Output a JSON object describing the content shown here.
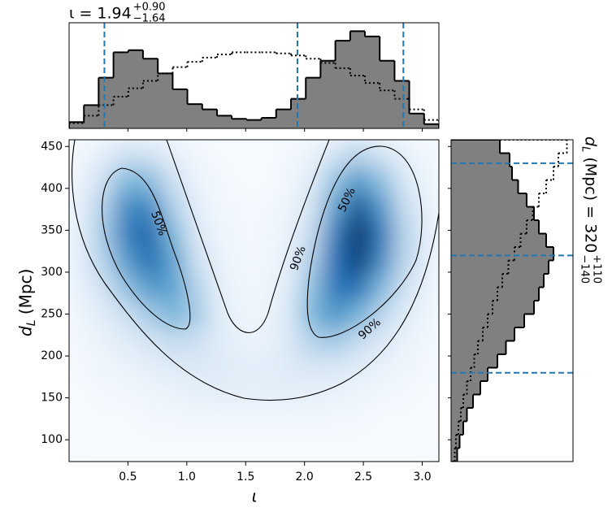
{
  "chart_data": [
    {
      "type": "heatmap",
      "xlabel": "ι",
      "ylabel": {
        "main": "d",
        "sub": "L",
        "rest": " (Mpc)"
      },
      "xlim": [
        0,
        3.1416
      ],
      "ylim": [
        74,
        458
      ],
      "xticks": [
        0.5,
        {
          "value": 1,
          "label": "1.0"
        },
        1.5,
        {
          "value": 2,
          "label": "2.0"
        },
        2.5,
        {
          "value": 3,
          "label": "3.0"
        }
      ],
      "yticks": [
        100,
        150,
        200,
        250,
        300,
        350,
        400,
        450
      ],
      "cmap": [
        "#f7fbff",
        "#c6dbef",
        "#6baed6",
        "#2171b5",
        "#08306b"
      ],
      "xbins": [
        0,
        0.196,
        0.393,
        0.589,
        0.785,
        0.982,
        1.178,
        1.374,
        1.571,
        1.767,
        1.963,
        2.16,
        2.356,
        2.553,
        2.749,
        2.945,
        3.142
      ],
      "ybins": [
        74,
        106,
        138,
        170,
        202,
        234,
        266,
        298,
        330,
        362,
        394,
        426,
        458
      ],
      "density": [
        [
          0.01,
          0.01,
          0.01,
          0.01,
          0.01,
          0.01,
          0.01,
          0.01,
          0.01,
          0.01,
          0.01,
          0.01,
          0.01,
          0.01,
          0.01,
          0.01
        ],
        [
          0.01,
          0.01,
          0.01,
          0.02,
          0.02,
          0.03,
          0.03,
          0.03,
          0.03,
          0.03,
          0.03,
          0.02,
          0.02,
          0.01,
          0.01,
          0.01
        ],
        [
          0.01,
          0.02,
          0.03,
          0.04,
          0.06,
          0.08,
          0.09,
          0.09,
          0.09,
          0.09,
          0.08,
          0.07,
          0.05,
          0.03,
          0.02,
          0.01
        ],
        [
          0.02,
          0.04,
          0.06,
          0.09,
          0.12,
          0.14,
          0.13,
          0.1,
          0.1,
          0.13,
          0.16,
          0.15,
          0.11,
          0.07,
          0.04,
          0.02
        ],
        [
          0.03,
          0.07,
          0.12,
          0.18,
          0.25,
          0.22,
          0.12,
          0.07,
          0.07,
          0.14,
          0.3,
          0.35,
          0.25,
          0.14,
          0.07,
          0.03
        ],
        [
          0.05,
          0.12,
          0.22,
          0.35,
          0.45,
          0.35,
          0.12,
          0.05,
          0.05,
          0.15,
          0.45,
          0.6,
          0.48,
          0.28,
          0.12,
          0.05
        ],
        [
          0.08,
          0.2,
          0.4,
          0.58,
          0.55,
          0.3,
          0.09,
          0.04,
          0.04,
          0.12,
          0.4,
          0.72,
          0.75,
          0.45,
          0.2,
          0.07
        ],
        [
          0.1,
          0.3,
          0.58,
          0.75,
          0.55,
          0.22,
          0.07,
          0.03,
          0.03,
          0.09,
          0.32,
          0.75,
          0.95,
          0.65,
          0.28,
          0.09
        ],
        [
          0.1,
          0.35,
          0.7,
          0.78,
          0.45,
          0.15,
          0.05,
          0.02,
          0.02,
          0.07,
          0.25,
          0.7,
          1.0,
          0.72,
          0.3,
          0.1
        ],
        [
          0.09,
          0.32,
          0.65,
          0.65,
          0.32,
          0.1,
          0.03,
          0.02,
          0.02,
          0.05,
          0.18,
          0.55,
          0.85,
          0.6,
          0.25,
          0.08
        ],
        [
          0.06,
          0.22,
          0.45,
          0.42,
          0.2,
          0.06,
          0.02,
          0.01,
          0.01,
          0.03,
          0.12,
          0.38,
          0.58,
          0.4,
          0.16,
          0.05
        ],
        [
          0.03,
          0.1,
          0.2,
          0.18,
          0.09,
          0.03,
          0.01,
          0.01,
          0.01,
          0.02,
          0.06,
          0.18,
          0.28,
          0.18,
          0.08,
          0.03
        ]
      ],
      "contour_labels": [
        "50%",
        "50%",
        "90%",
        "90%"
      ]
    },
    {
      "type": "histogram",
      "orientation": "vertical",
      "title": {
        "main": "ι = 1.94",
        "upper": "+0.90",
        "lower": "−1.64"
      },
      "ylim": [
        0,
        1
      ],
      "bins": [
        0,
        0.126,
        0.251,
        0.377,
        0.503,
        0.628,
        0.754,
        0.88,
        1.005,
        1.131,
        1.257,
        1.382,
        1.508,
        1.634,
        1.759,
        1.885,
        2.011,
        2.136,
        2.262,
        2.388,
        2.513,
        2.639,
        2.765,
        2.89,
        3.016,
        3.142
      ],
      "series": [
        {
          "color": "#808080",
          "style": "filled",
          "values": [
            0.06,
            0.22,
            0.48,
            0.72,
            0.74,
            0.66,
            0.52,
            0.37,
            0.23,
            0.18,
            0.12,
            0.09,
            0.08,
            0.1,
            0.18,
            0.28,
            0.48,
            0.64,
            0.83,
            0.92,
            0.87,
            0.64,
            0.45,
            0.14,
            0.04
          ]
        },
        {
          "color": "#000000",
          "style": "dotted",
          "values": [
            0.05,
            0.12,
            0.22,
            0.3,
            0.38,
            0.45,
            0.52,
            0.58,
            0.63,
            0.67,
            0.7,
            0.72,
            0.72,
            0.72,
            0.71,
            0.69,
            0.66,
            0.62,
            0.57,
            0.5,
            0.43,
            0.36,
            0.28,
            0.18,
            0.08
          ]
        }
      ],
      "quantiles": [
        0.3,
        1.94,
        2.84
      ],
      "line_color": "#1f77b4"
    },
    {
      "type": "histogram",
      "orientation": "horizontal",
      "label": {
        "main": "d",
        "sub": "L",
        "rest": " (Mpc) = 320",
        "upper": "+110",
        "lower": "−140"
      },
      "xlim": [
        0,
        1
      ],
      "bins": [
        74,
        90,
        106,
        122,
        138,
        154,
        170,
        186,
        202,
        218,
        234,
        250,
        266,
        282,
        298,
        314,
        330,
        346,
        362,
        378,
        394,
        410,
        426,
        442,
        458
      ],
      "series": [
        {
          "color": "#808080",
          "style": "filled",
          "values": [
            0.05,
            0.07,
            0.1,
            0.13,
            0.18,
            0.24,
            0.3,
            0.38,
            0.45,
            0.52,
            0.6,
            0.68,
            0.72,
            0.76,
            0.8,
            0.84,
            0.78,
            0.72,
            0.68,
            0.62,
            0.55,
            0.5,
            0.48,
            0.4
          ]
        },
        {
          "color": "#000000",
          "style": "dotted",
          "values": [
            0.03,
            0.04,
            0.06,
            0.08,
            0.1,
            0.13,
            0.16,
            0.19,
            0.22,
            0.26,
            0.3,
            0.34,
            0.38,
            0.42,
            0.47,
            0.52,
            0.57,
            0.62,
            0.67,
            0.72,
            0.78,
            0.84,
            0.88,
            0.95
          ]
        }
      ],
      "quantiles": [
        180,
        320,
        430
      ],
      "line_color": "#1f77b4"
    }
  ]
}
